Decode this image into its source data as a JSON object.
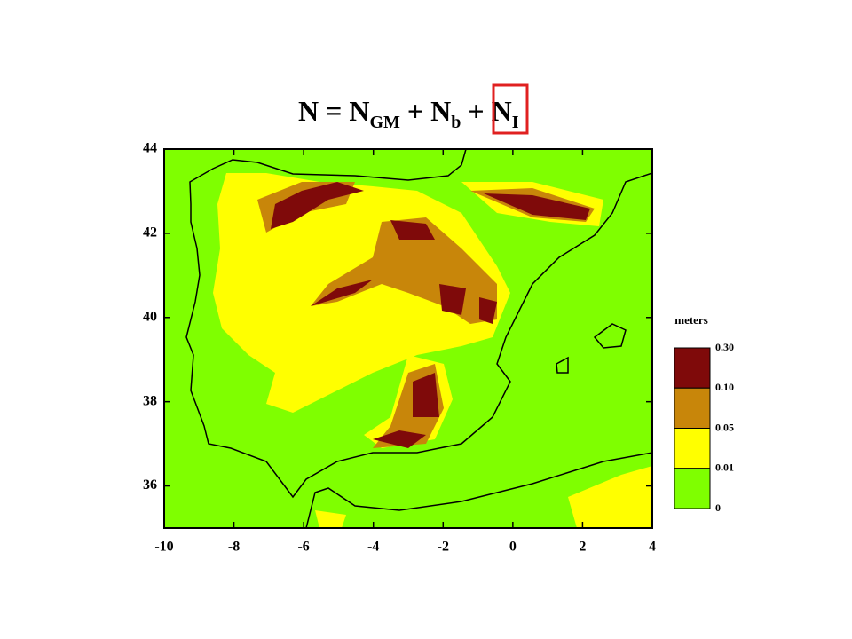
{
  "title": {
    "p1": "N = N",
    "s1": "GM",
    "p2": " + N",
    "s2": "b",
    "p3": " + ",
    "p4": "N",
    "s3": "I"
  },
  "map": {
    "xlim": [
      -10,
      4
    ],
    "ylim": [
      35,
      44
    ],
    "xticks": [
      -10,
      -8,
      -6,
      -4,
      -2,
      0,
      2,
      4
    ],
    "yticks": [
      36,
      38,
      40,
      42,
      44
    ]
  },
  "legend": {
    "title": "meters",
    "ticks": [
      {
        "value": 0.3,
        "label": "0.30"
      },
      {
        "value": 0.1,
        "label": "0.10"
      },
      0.05,
      0.01,
      0
    ],
    "colors": [
      "#7f0a0a",
      "#c8860a",
      "#ffff00",
      "#7fff00"
    ]
  }
}
